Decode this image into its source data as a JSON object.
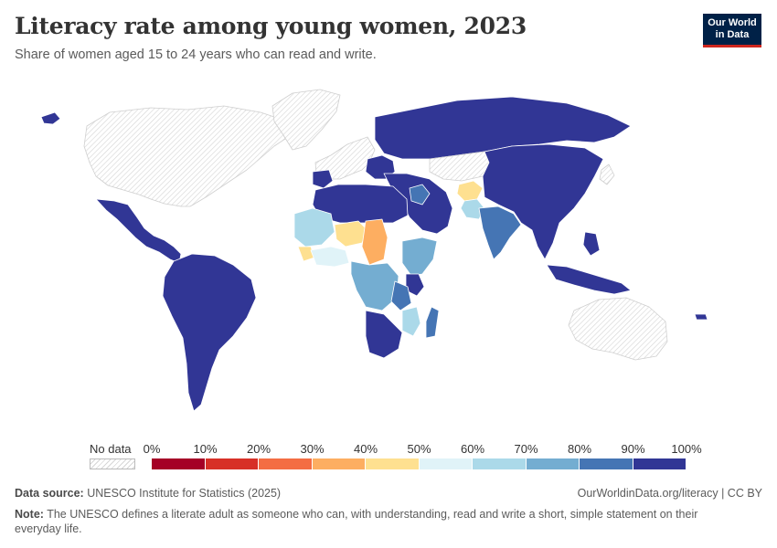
{
  "header": {
    "title": "Literacy rate among young women, 2023",
    "subtitle": "Share of women aged 15 to 24 years who can read and write."
  },
  "logo": {
    "line1": "Our World",
    "line2": "in Data"
  },
  "legend": {
    "no_data_label": "No data",
    "ticks": [
      "0%",
      "10%",
      "20%",
      "30%",
      "40%",
      "50%",
      "60%",
      "70%",
      "80%",
      "90%",
      "100%"
    ],
    "colors": [
      "#a50026",
      "#d73027",
      "#f46d43",
      "#fdae61",
      "#fee090",
      "#e0f3f8",
      "#abd9e9",
      "#74add1",
      "#4575b4",
      "#313695"
    ],
    "no_data_color": "hatched-grey"
  },
  "footer": {
    "source_label": "Data source:",
    "source_text": "UNESCO Institute for Statistics (2025)",
    "link": "OurWorldinData.org/literacy | CC BY",
    "note_label": "Note:",
    "note_text": "The UNESCO defines a literate adult as someone who can, with understanding, read and write a short, simple statement on their everyday life."
  },
  "map_regions": [
    {
      "name": "north-america",
      "bin": "no-data"
    },
    {
      "name": "greenland",
      "bin": "no-data"
    },
    {
      "name": "mexico-central-america",
      "bin": "90-100"
    },
    {
      "name": "south-america",
      "bin": "90-100"
    },
    {
      "name": "western-europe",
      "bin": "no-data"
    },
    {
      "name": "eastern-europe",
      "bin": "90-100"
    },
    {
      "name": "russia",
      "bin": "90-100"
    },
    {
      "name": "north-africa",
      "bin": "90-100"
    },
    {
      "name": "west-sahel",
      "bin": "60-70"
    },
    {
      "name": "mali-niger",
      "bin": "40-50"
    },
    {
      "name": "chad",
      "bin": "30-40"
    },
    {
      "name": "guinea",
      "bin": "40-50"
    },
    {
      "name": "central-africa",
      "bin": "70-80"
    },
    {
      "name": "east-africa",
      "bin": "70-80"
    },
    {
      "name": "tanzania",
      "bin": "80-90"
    },
    {
      "name": "kenya",
      "bin": "90-100"
    },
    {
      "name": "mozambique",
      "bin": "60-70"
    },
    {
      "name": "madagascar",
      "bin": "80-90"
    },
    {
      "name": "southern-africa",
      "bin": "90-100"
    },
    {
      "name": "middle-east",
      "bin": "90-100"
    },
    {
      "name": "iraq",
      "bin": "80-90"
    },
    {
      "name": "afghanistan",
      "bin": "40-50"
    },
    {
      "name": "pakistan",
      "bin": "60-70"
    },
    {
      "name": "india",
      "bin": "80-90"
    },
    {
      "name": "china-se-asia",
      "bin": "90-100"
    },
    {
      "name": "indonesia",
      "bin": "90-100"
    },
    {
      "name": "australia",
      "bin": "no-data"
    }
  ]
}
